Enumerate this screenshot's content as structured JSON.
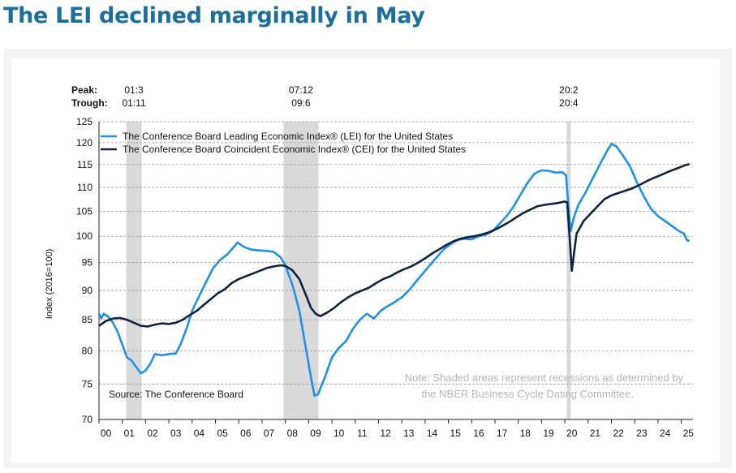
{
  "page": {
    "title": "The LEI declined marginally in May"
  },
  "chart_data": {
    "type": "line",
    "title": "The LEI declined marginally in May",
    "ylabel": "Index (2016=100)",
    "xlabel": "",
    "x_start": 2000,
    "x_end": 2025.5,
    "ylim": [
      70,
      125
    ],
    "y_scale": "log",
    "yticks": [
      70,
      75,
      80,
      85,
      90,
      95,
      100,
      105,
      110,
      115,
      120,
      125
    ],
    "x_tick_labels": [
      "00",
      "01",
      "02",
      "03",
      "04",
      "05",
      "06",
      "07",
      "08",
      "09",
      "10",
      "11",
      "12",
      "13",
      "14",
      "15",
      "16",
      "17",
      "18",
      "19",
      "20",
      "21",
      "22",
      "23",
      "24",
      "25"
    ],
    "grid": true,
    "legend_position": "top-left",
    "peak_trough": {
      "peak_label": "Peak:",
      "trough_label": "Trough:",
      "items": [
        {
          "peak": "01:3",
          "trough": "01:11",
          "start": 2001.17,
          "end": 2001.83
        },
        {
          "peak": "07:12",
          "trough": "09:6",
          "start": 2007.92,
          "end": 2009.42
        },
        {
          "peak": "20:2",
          "trough": "20:4",
          "start": 2020.08,
          "end": 2020.25
        }
      ]
    },
    "annotations": {
      "source": "Source: The Conference Board",
      "note_line1": "Note: Shaded areas represent recessions as determined by",
      "note_line2": "the NBER Business Cycle Dating Committee."
    },
    "series": [
      {
        "name": "The Conference Board Leading Economic Index® (LEI) for the United States",
        "color": "#1e90e8",
        "points": [
          [
            2000.0,
            86.0
          ],
          [
            2000.1,
            85.2
          ],
          [
            2000.2,
            86.0
          ],
          [
            2000.4,
            85.5
          ],
          [
            2000.6,
            84.5
          ],
          [
            2000.8,
            83.0
          ],
          [
            2001.0,
            81.0
          ],
          [
            2001.2,
            79.0
          ],
          [
            2001.4,
            78.5
          ],
          [
            2001.6,
            77.5
          ],
          [
            2001.8,
            76.6
          ],
          [
            2002.0,
            77.0
          ],
          [
            2002.2,
            78.0
          ],
          [
            2002.4,
            79.5
          ],
          [
            2002.7,
            79.3
          ],
          [
            2003.0,
            79.5
          ],
          [
            2003.3,
            79.6
          ],
          [
            2003.5,
            81.0
          ],
          [
            2003.8,
            84.0
          ],
          [
            2004.0,
            86.5
          ],
          [
            2004.3,
            89.0
          ],
          [
            2004.6,
            91.5
          ],
          [
            2004.9,
            94.0
          ],
          [
            2005.2,
            95.5
          ],
          [
            2005.5,
            96.5
          ],
          [
            2005.8,
            98.0
          ],
          [
            2005.95,
            98.8
          ],
          [
            2006.2,
            98.0
          ],
          [
            2006.5,
            97.5
          ],
          [
            2006.8,
            97.3
          ],
          [
            2007.2,
            97.2
          ],
          [
            2007.5,
            97.0
          ],
          [
            2007.8,
            96.0
          ],
          [
            2008.0,
            94.5
          ],
          [
            2008.3,
            91.0
          ],
          [
            2008.6,
            86.5
          ],
          [
            2008.9,
            80.0
          ],
          [
            2009.1,
            76.0
          ],
          [
            2009.25,
            73.3
          ],
          [
            2009.4,
            73.5
          ],
          [
            2009.7,
            76.0
          ],
          [
            2010.0,
            79.0
          ],
          [
            2010.3,
            80.5
          ],
          [
            2010.6,
            81.5
          ],
          [
            2010.9,
            83.5
          ],
          [
            2011.2,
            85.0
          ],
          [
            2011.5,
            86.0
          ],
          [
            2011.8,
            85.2
          ],
          [
            2012.1,
            86.5
          ],
          [
            2012.4,
            87.3
          ],
          [
            2012.7,
            88.0
          ],
          [
            2013.0,
            88.8
          ],
          [
            2013.3,
            90.0
          ],
          [
            2013.6,
            91.5
          ],
          [
            2013.9,
            93.0
          ],
          [
            2014.2,
            94.5
          ],
          [
            2014.5,
            96.0
          ],
          [
            2014.8,
            97.5
          ],
          [
            2015.1,
            98.5
          ],
          [
            2015.4,
            99.3
          ],
          [
            2015.7,
            99.5
          ],
          [
            2016.0,
            99.4
          ],
          [
            2016.3,
            100.0
          ],
          [
            2016.6,
            100.3
          ],
          [
            2016.9,
            101.0
          ],
          [
            2017.2,
            102.5
          ],
          [
            2017.5,
            104.0
          ],
          [
            2017.8,
            106.0
          ],
          [
            2018.1,
            108.5
          ],
          [
            2018.4,
            111.0
          ],
          [
            2018.7,
            113.0
          ],
          [
            2019.0,
            113.7
          ],
          [
            2019.3,
            113.6
          ],
          [
            2019.6,
            113.2
          ],
          [
            2019.9,
            113.3
          ],
          [
            2020.05,
            112.6
          ],
          [
            2020.15,
            106.0
          ],
          [
            2020.25,
            101.0
          ],
          [
            2020.4,
            104.0
          ],
          [
            2020.6,
            106.5
          ],
          [
            2020.9,
            109.0
          ],
          [
            2021.2,
            112.0
          ],
          [
            2021.5,
            115.0
          ],
          [
            2021.8,
            118.0
          ],
          [
            2022.0,
            119.7
          ],
          [
            2022.2,
            119.2
          ],
          [
            2022.5,
            117.0
          ],
          [
            2022.8,
            114.5
          ],
          [
            2023.1,
            111.0
          ],
          [
            2023.4,
            108.0
          ],
          [
            2023.7,
            105.5
          ],
          [
            2024.0,
            104.0
          ],
          [
            2024.3,
            103.0
          ],
          [
            2024.6,
            102.0
          ],
          [
            2024.9,
            101.0
          ],
          [
            2025.1,
            100.6
          ],
          [
            2025.25,
            99.2
          ],
          [
            2025.35,
            99.1
          ]
        ]
      },
      {
        "name": "The Conference Board Coincident Economic Index® (CEI) for the United States",
        "color": "#0f2340",
        "points": [
          [
            2000.0,
            84.0
          ],
          [
            2000.3,
            84.8
          ],
          [
            2000.6,
            85.2
          ],
          [
            2000.9,
            85.3
          ],
          [
            2001.2,
            85.0
          ],
          [
            2001.5,
            84.5
          ],
          [
            2001.8,
            84.0
          ],
          [
            2002.1,
            83.9
          ],
          [
            2002.4,
            84.2
          ],
          [
            2002.7,
            84.4
          ],
          [
            2003.0,
            84.3
          ],
          [
            2003.3,
            84.5
          ],
          [
            2003.6,
            85.0
          ],
          [
            2003.9,
            85.8
          ],
          [
            2004.2,
            86.5
          ],
          [
            2004.5,
            87.5
          ],
          [
            2004.8,
            88.5
          ],
          [
            2005.1,
            89.5
          ],
          [
            2005.4,
            90.2
          ],
          [
            2005.7,
            91.3
          ],
          [
            2006.0,
            92.0
          ],
          [
            2006.3,
            92.5
          ],
          [
            2006.6,
            93.0
          ],
          [
            2006.9,
            93.5
          ],
          [
            2007.2,
            94.0
          ],
          [
            2007.5,
            94.3
          ],
          [
            2007.8,
            94.5
          ],
          [
            2008.0,
            94.4
          ],
          [
            2008.3,
            93.6
          ],
          [
            2008.6,
            92.0
          ],
          [
            2008.9,
            89.0
          ],
          [
            2009.1,
            87.0
          ],
          [
            2009.3,
            86.0
          ],
          [
            2009.5,
            85.6
          ],
          [
            2009.8,
            86.2
          ],
          [
            2010.1,
            87.0
          ],
          [
            2010.4,
            88.0
          ],
          [
            2010.7,
            88.8
          ],
          [
            2011.0,
            89.5
          ],
          [
            2011.3,
            90.0
          ],
          [
            2011.6,
            90.5
          ],
          [
            2011.9,
            91.3
          ],
          [
            2012.2,
            92.0
          ],
          [
            2012.5,
            92.5
          ],
          [
            2012.8,
            93.2
          ],
          [
            2013.1,
            93.8
          ],
          [
            2013.4,
            94.3
          ],
          [
            2013.7,
            95.0
          ],
          [
            2014.0,
            95.8
          ],
          [
            2014.3,
            96.7
          ],
          [
            2014.6,
            97.5
          ],
          [
            2014.9,
            98.3
          ],
          [
            2015.2,
            99.0
          ],
          [
            2015.5,
            99.5
          ],
          [
            2015.8,
            99.8
          ],
          [
            2016.1,
            100.0
          ],
          [
            2016.4,
            100.3
          ],
          [
            2016.7,
            100.7
          ],
          [
            2017.0,
            101.3
          ],
          [
            2017.3,
            102.0
          ],
          [
            2017.6,
            102.8
          ],
          [
            2017.9,
            103.7
          ],
          [
            2018.2,
            104.6
          ],
          [
            2018.5,
            105.3
          ],
          [
            2018.8,
            106.0
          ],
          [
            2019.1,
            106.3
          ],
          [
            2019.4,
            106.5
          ],
          [
            2019.7,
            106.7
          ],
          [
            2020.0,
            107.0
          ],
          [
            2020.1,
            106.8
          ],
          [
            2020.2,
            100.0
          ],
          [
            2020.3,
            93.5
          ],
          [
            2020.4,
            97.0
          ],
          [
            2020.5,
            100.5
          ],
          [
            2020.8,
            103.0
          ],
          [
            2021.1,
            104.5
          ],
          [
            2021.4,
            106.0
          ],
          [
            2021.7,
            107.5
          ],
          [
            2022.0,
            108.3
          ],
          [
            2022.3,
            108.8
          ],
          [
            2022.6,
            109.3
          ],
          [
            2022.9,
            109.8
          ],
          [
            2023.2,
            110.5
          ],
          [
            2023.5,
            111.3
          ],
          [
            2023.8,
            112.0
          ],
          [
            2024.1,
            112.6
          ],
          [
            2024.4,
            113.3
          ],
          [
            2024.7,
            113.9
          ],
          [
            2025.0,
            114.5
          ],
          [
            2025.2,
            114.9
          ],
          [
            2025.35,
            115.1
          ]
        ]
      }
    ]
  }
}
